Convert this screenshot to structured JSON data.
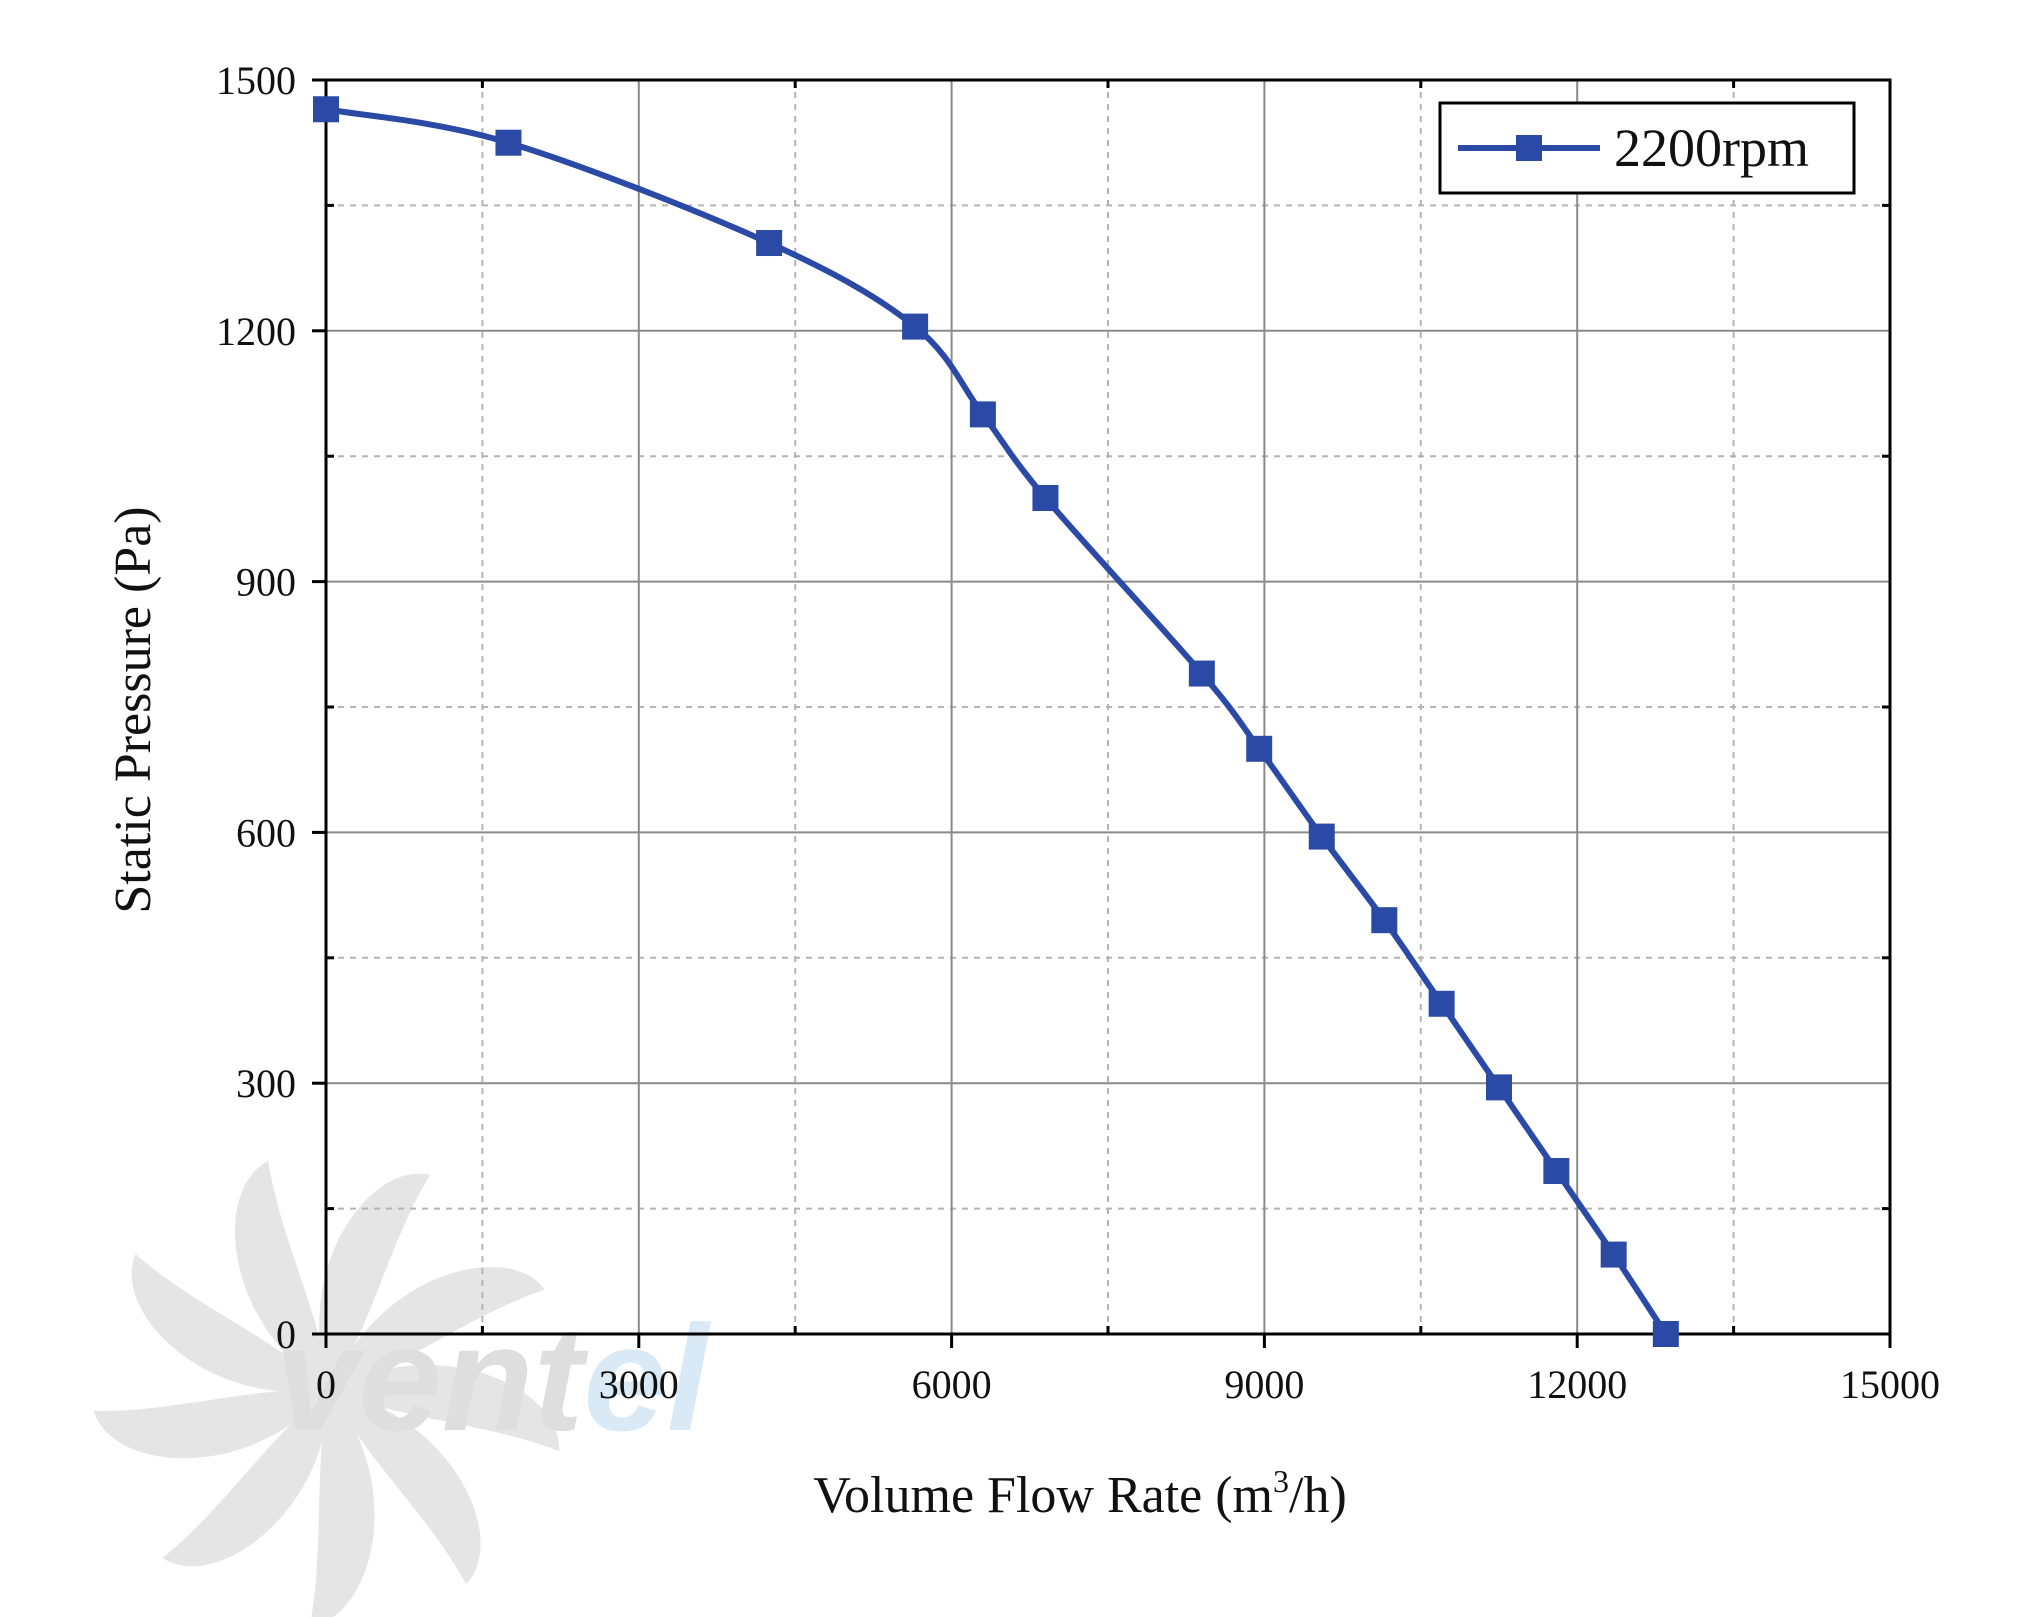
{
  "chart_data": {
    "type": "line",
    "xlabel": "Volume Flow Rate (m³/h)",
    "xlabel_main": "Volume Flow Rate (m",
    "xlabel_sup": "3",
    "xlabel_tail": "/h)",
    "ylabel": "Static Pressure (Pa)",
    "xlim": [
      0,
      15000
    ],
    "ylim": [
      0,
      1500
    ],
    "x_ticks": [
      0,
      3000,
      6000,
      9000,
      12000,
      15000
    ],
    "y_ticks": [
      0,
      300,
      600,
      900,
      1200,
      1500
    ],
    "x_tick_labels": [
      "0",
      "3000",
      "6000",
      "9000",
      "12000",
      "15000"
    ],
    "y_tick_labels": [
      "0",
      "300",
      "600",
      "900",
      "1200",
      "1500"
    ],
    "grid": true,
    "legend_position": "top-right",
    "series": [
      {
        "name": "2200rpm",
        "color": "#2b4aa6",
        "marker": "square",
        "x": [
          0,
          1750,
          4250,
          5650,
          6300,
          6900,
          8400,
          8950,
          9550,
          10150,
          10700,
          11250,
          11800,
          12350,
          12850
        ],
        "y": [
          1465,
          1425,
          1305,
          1205,
          1100,
          1000,
          790,
          700,
          595,
          495,
          395,
          295,
          195,
          95,
          0
        ]
      }
    ]
  },
  "watermark": {
    "text_dark": "vent",
    "text_light": "el",
    "dark_color": "#c4c4c4",
    "light_color": "#bcd8ef"
  }
}
